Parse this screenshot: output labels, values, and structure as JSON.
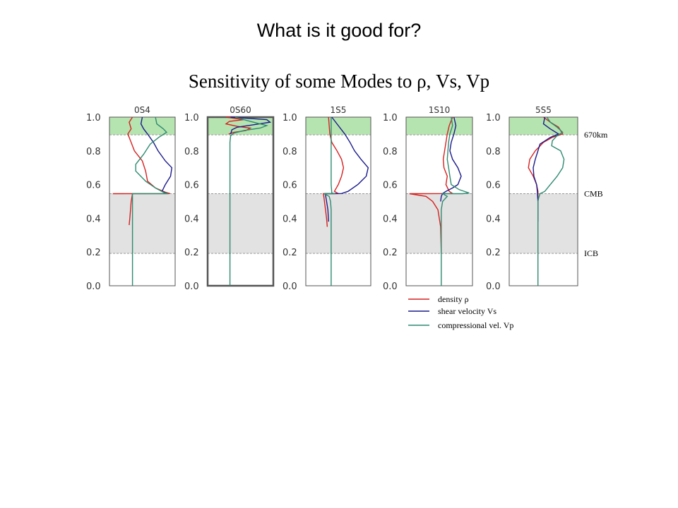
{
  "slide": {
    "title": "What is it good for?"
  },
  "chart_data": {
    "type": "line",
    "title": "Sensitivity of some Modes to ρ, Vs, Vp",
    "y_axis": {
      "range": [
        0.0,
        1.0
      ],
      "tick_labels": [
        "1.0",
        "0.8",
        "0.6",
        "0.4",
        "0.2",
        "0.0"
      ]
    },
    "boundaries": [
      {
        "label": "670km",
        "r": 0.895
      },
      {
        "label": "CMB",
        "r": 0.546
      },
      {
        "label": "ICB",
        "r": 0.192
      }
    ],
    "shading": {
      "upper_mantle_color": "#b6e4b0",
      "outer_core_color": "#e2e2e2"
    },
    "colors": {
      "density": "#d62020",
      "shear": "#1a1a8c",
      "compressional": "#2e8a70"
    },
    "legend": [
      {
        "series": "density",
        "label": "density ρ"
      },
      {
        "series": "shear",
        "label": "shear velocity Vs"
      },
      {
        "series": "compressional",
        "label": "compressional vel. Vp"
      }
    ],
    "panels": [
      {
        "name": "0S4",
        "series": [
          {
            "key": "density",
            "points": [
              [
                1.0,
                0.35
              ],
              [
                0.97,
                0.3
              ],
              [
                0.93,
                0.33
              ],
              [
                0.9,
                0.28
              ],
              [
                0.86,
                0.32
              ],
              [
                0.8,
                0.38
              ],
              [
                0.74,
                0.5
              ],
              [
                0.68,
                0.55
              ],
              [
                0.62,
                0.58
              ],
              [
                0.58,
                0.7
              ],
              [
                0.555,
                0.85
              ],
              [
                0.547,
                0.92
              ],
              [
                0.546,
                0.05
              ],
              [
                0.546,
                0.35
              ],
              [
                0.5,
                0.33
              ],
              [
                0.45,
                0.32
              ],
              [
                0.4,
                0.31
              ],
              [
                0.36,
                0.3
              ]
            ]
          },
          {
            "key": "shear",
            "points": [
              [
                1.0,
                0.5
              ],
              [
                0.96,
                0.48
              ],
              [
                0.93,
                0.52
              ],
              [
                0.9,
                0.58
              ],
              [
                0.85,
                0.67
              ],
              [
                0.8,
                0.74
              ],
              [
                0.74,
                0.85
              ],
              [
                0.7,
                0.95
              ],
              [
                0.65,
                0.93
              ],
              [
                0.6,
                0.85
              ],
              [
                0.56,
                0.8
              ],
              [
                0.547,
                0.87
              ]
            ]
          },
          {
            "key": "compressional",
            "points": [
              [
                1.0,
                0.7
              ],
              [
                0.96,
                0.72
              ],
              [
                0.93,
                0.82
              ],
              [
                0.91,
                0.87
              ],
              [
                0.88,
                0.75
              ],
              [
                0.84,
                0.62
              ],
              [
                0.78,
                0.52
              ],
              [
                0.72,
                0.4
              ],
              [
                0.68,
                0.4
              ],
              [
                0.62,
                0.55
              ],
              [
                0.58,
                0.7
              ],
              [
                0.55,
                0.84
              ],
              [
                0.546,
                0.9
              ],
              [
                0.546,
                0.35
              ],
              [
                0.0,
                0.35
              ]
            ]
          }
        ]
      },
      {
        "name": "0S60",
        "series": [
          {
            "key": "density",
            "points": [
              [
                1.0,
                0.28
              ],
              [
                0.985,
                0.55
              ],
              [
                0.975,
                0.33
              ],
              [
                0.96,
                0.28
              ],
              [
                0.945,
                0.45
              ],
              [
                0.935,
                0.65
              ],
              [
                0.92,
                0.58
              ],
              [
                0.91,
                0.4
              ],
              [
                0.9,
                0.32
              ]
            ]
          },
          {
            "key": "shear",
            "points": [
              [
                1.0,
                0.35
              ],
              [
                0.985,
                0.9
              ],
              [
                0.97,
                0.95
              ],
              [
                0.955,
                0.7
              ],
              [
                0.94,
                0.45
              ],
              [
                0.925,
                0.37
              ],
              [
                0.9,
                0.35
              ]
            ]
          },
          {
            "key": "compressional",
            "points": [
              [
                1.0,
                0.42
              ],
              [
                0.98,
                0.6
              ],
              [
                0.965,
                0.75
              ],
              [
                0.95,
                0.9
              ],
              [
                0.935,
                0.8
              ],
              [
                0.92,
                0.55
              ],
              [
                0.905,
                0.4
              ],
              [
                0.89,
                0.35
              ],
              [
                0.85,
                0.34
              ],
              [
                0.0,
                0.34
              ]
            ]
          }
        ]
      },
      {
        "name": "1S5",
        "series": [
          {
            "key": "density",
            "points": [
              [
                1.0,
                0.35
              ],
              [
                0.95,
                0.36
              ],
              [
                0.9,
                0.37
              ],
              [
                0.85,
                0.4
              ],
              [
                0.8,
                0.48
              ],
              [
                0.75,
                0.55
              ],
              [
                0.7,
                0.58
              ],
              [
                0.65,
                0.55
              ],
              [
                0.6,
                0.5
              ],
              [
                0.56,
                0.44
              ],
              [
                0.547,
                0.5
              ],
              [
                0.546,
                0.27
              ],
              [
                0.52,
                0.28
              ],
              [
                0.46,
                0.3
              ],
              [
                0.4,
                0.32
              ],
              [
                0.35,
                0.33
              ]
            ]
          },
          {
            "key": "shear",
            "points": [
              [
                1.0,
                0.4
              ],
              [
                0.95,
                0.5
              ],
              [
                0.9,
                0.6
              ],
              [
                0.85,
                0.68
              ],
              [
                0.8,
                0.75
              ],
              [
                0.75,
                0.85
              ],
              [
                0.7,
                0.96
              ],
              [
                0.65,
                0.93
              ],
              [
                0.6,
                0.8
              ],
              [
                0.56,
                0.65
              ],
              [
                0.547,
                0.55
              ],
              [
                0.546,
                0.3
              ],
              [
                0.5,
                0.32
              ],
              [
                0.45,
                0.34
              ],
              [
                0.38,
                0.35
              ]
            ]
          },
          {
            "key": "compressional",
            "points": [
              [
                1.0,
                0.39
              ],
              [
                0.9,
                0.39
              ],
              [
                0.8,
                0.39
              ],
              [
                0.7,
                0.39
              ],
              [
                0.6,
                0.39
              ],
              [
                0.55,
                0.4
              ],
              [
                0.546,
                0.45
              ],
              [
                0.546,
                0.28
              ],
              [
                0.53,
                0.36
              ],
              [
                0.5,
                0.38
              ],
              [
                0.45,
                0.39
              ],
              [
                0.0,
                0.39
              ]
            ]
          }
        ]
      },
      {
        "name": "1S10",
        "series": [
          {
            "key": "density",
            "points": [
              [
                1.0,
                0.7
              ],
              [
                0.95,
                0.65
              ],
              [
                0.9,
                0.62
              ],
              [
                0.85,
                0.6
              ],
              [
                0.8,
                0.58
              ],
              [
                0.75,
                0.56
              ],
              [
                0.7,
                0.57
              ],
              [
                0.65,
                0.62
              ],
              [
                0.6,
                0.6
              ],
              [
                0.56,
                0.65
              ],
              [
                0.547,
                0.7
              ],
              [
                0.546,
                0.05
              ],
              [
                0.53,
                0.3
              ],
              [
                0.5,
                0.4
              ],
              [
                0.45,
                0.48
              ],
              [
                0.35,
                0.52
              ],
              [
                0.2,
                0.53
              ]
            ]
          },
          {
            "key": "shear",
            "points": [
              [
                1.0,
                0.72
              ],
              [
                0.95,
                0.75
              ],
              [
                0.9,
                0.72
              ],
              [
                0.85,
                0.68
              ],
              [
                0.8,
                0.66
              ],
              [
                0.75,
                0.7
              ],
              [
                0.7,
                0.78
              ],
              [
                0.65,
                0.83
              ],
              [
                0.6,
                0.78
              ],
              [
                0.58,
                0.7
              ],
              [
                0.56,
                0.6
              ],
              [
                0.547,
                0.55
              ],
              [
                0.53,
                0.53
              ],
              [
                0.5,
                0.52
              ]
            ]
          },
          {
            "key": "compressional",
            "points": [
              [
                1.0,
                0.68
              ],
              [
                0.95,
                0.7
              ],
              [
                0.9,
                0.66
              ],
              [
                0.85,
                0.64
              ],
              [
                0.8,
                0.63
              ],
              [
                0.75,
                0.62
              ],
              [
                0.7,
                0.64
              ],
              [
                0.65,
                0.66
              ],
              [
                0.6,
                0.68
              ],
              [
                0.57,
                0.8
              ],
              [
                0.55,
                0.95
              ],
              [
                0.546,
                0.85
              ],
              [
                0.546,
                0.55
              ],
              [
                0.53,
                0.62
              ],
              [
                0.5,
                0.55
              ],
              [
                0.45,
                0.53
              ],
              [
                0.0,
                0.53
              ]
            ]
          }
        ]
      },
      {
        "name": "5S5",
        "series": [
          {
            "key": "density",
            "points": [
              [
                1.0,
                0.5
              ],
              [
                0.97,
                0.6
              ],
              [
                0.94,
                0.72
              ],
              [
                0.9,
                0.78
              ],
              [
                0.88,
                0.63
              ],
              [
                0.85,
                0.5
              ],
              [
                0.8,
                0.38
              ],
              [
                0.75,
                0.3
              ],
              [
                0.7,
                0.28
              ],
              [
                0.65,
                0.35
              ],
              [
                0.6,
                0.4
              ],
              [
                0.56,
                0.42
              ],
              [
                0.5,
                0.42
              ],
              [
                0.45,
                0.42
              ],
              [
                0.4,
                0.42
              ]
            ]
          },
          {
            "key": "shear",
            "points": [
              [
                1.0,
                0.52
              ],
              [
                0.96,
                0.5
              ],
              [
                0.93,
                0.6
              ],
              [
                0.9,
                0.72
              ],
              [
                0.88,
                0.6
              ],
              [
                0.84,
                0.45
              ],
              [
                0.8,
                0.42
              ],
              [
                0.75,
                0.38
              ],
              [
                0.7,
                0.35
              ],
              [
                0.65,
                0.36
              ],
              [
                0.6,
                0.4
              ],
              [
                0.56,
                0.41
              ],
              [
                0.5,
                0.42
              ],
              [
                0.45,
                0.42
              ],
              [
                0.38,
                0.42
              ]
            ]
          },
          {
            "key": "compressional",
            "points": [
              [
                1.0,
                0.55
              ],
              [
                0.97,
                0.6
              ],
              [
                0.94,
                0.7
              ],
              [
                0.91,
                0.78
              ],
              [
                0.89,
                0.7
              ],
              [
                0.86,
                0.63
              ],
              [
                0.83,
                0.62
              ],
              [
                0.8,
                0.75
              ],
              [
                0.75,
                0.8
              ],
              [
                0.7,
                0.78
              ],
              [
                0.65,
                0.7
              ],
              [
                0.6,
                0.6
              ],
              [
                0.56,
                0.52
              ],
              [
                0.546,
                0.45
              ],
              [
                0.52,
                0.43
              ],
              [
                0.5,
                0.42
              ],
              [
                0.0,
                0.42
              ]
            ]
          }
        ]
      }
    ]
  }
}
